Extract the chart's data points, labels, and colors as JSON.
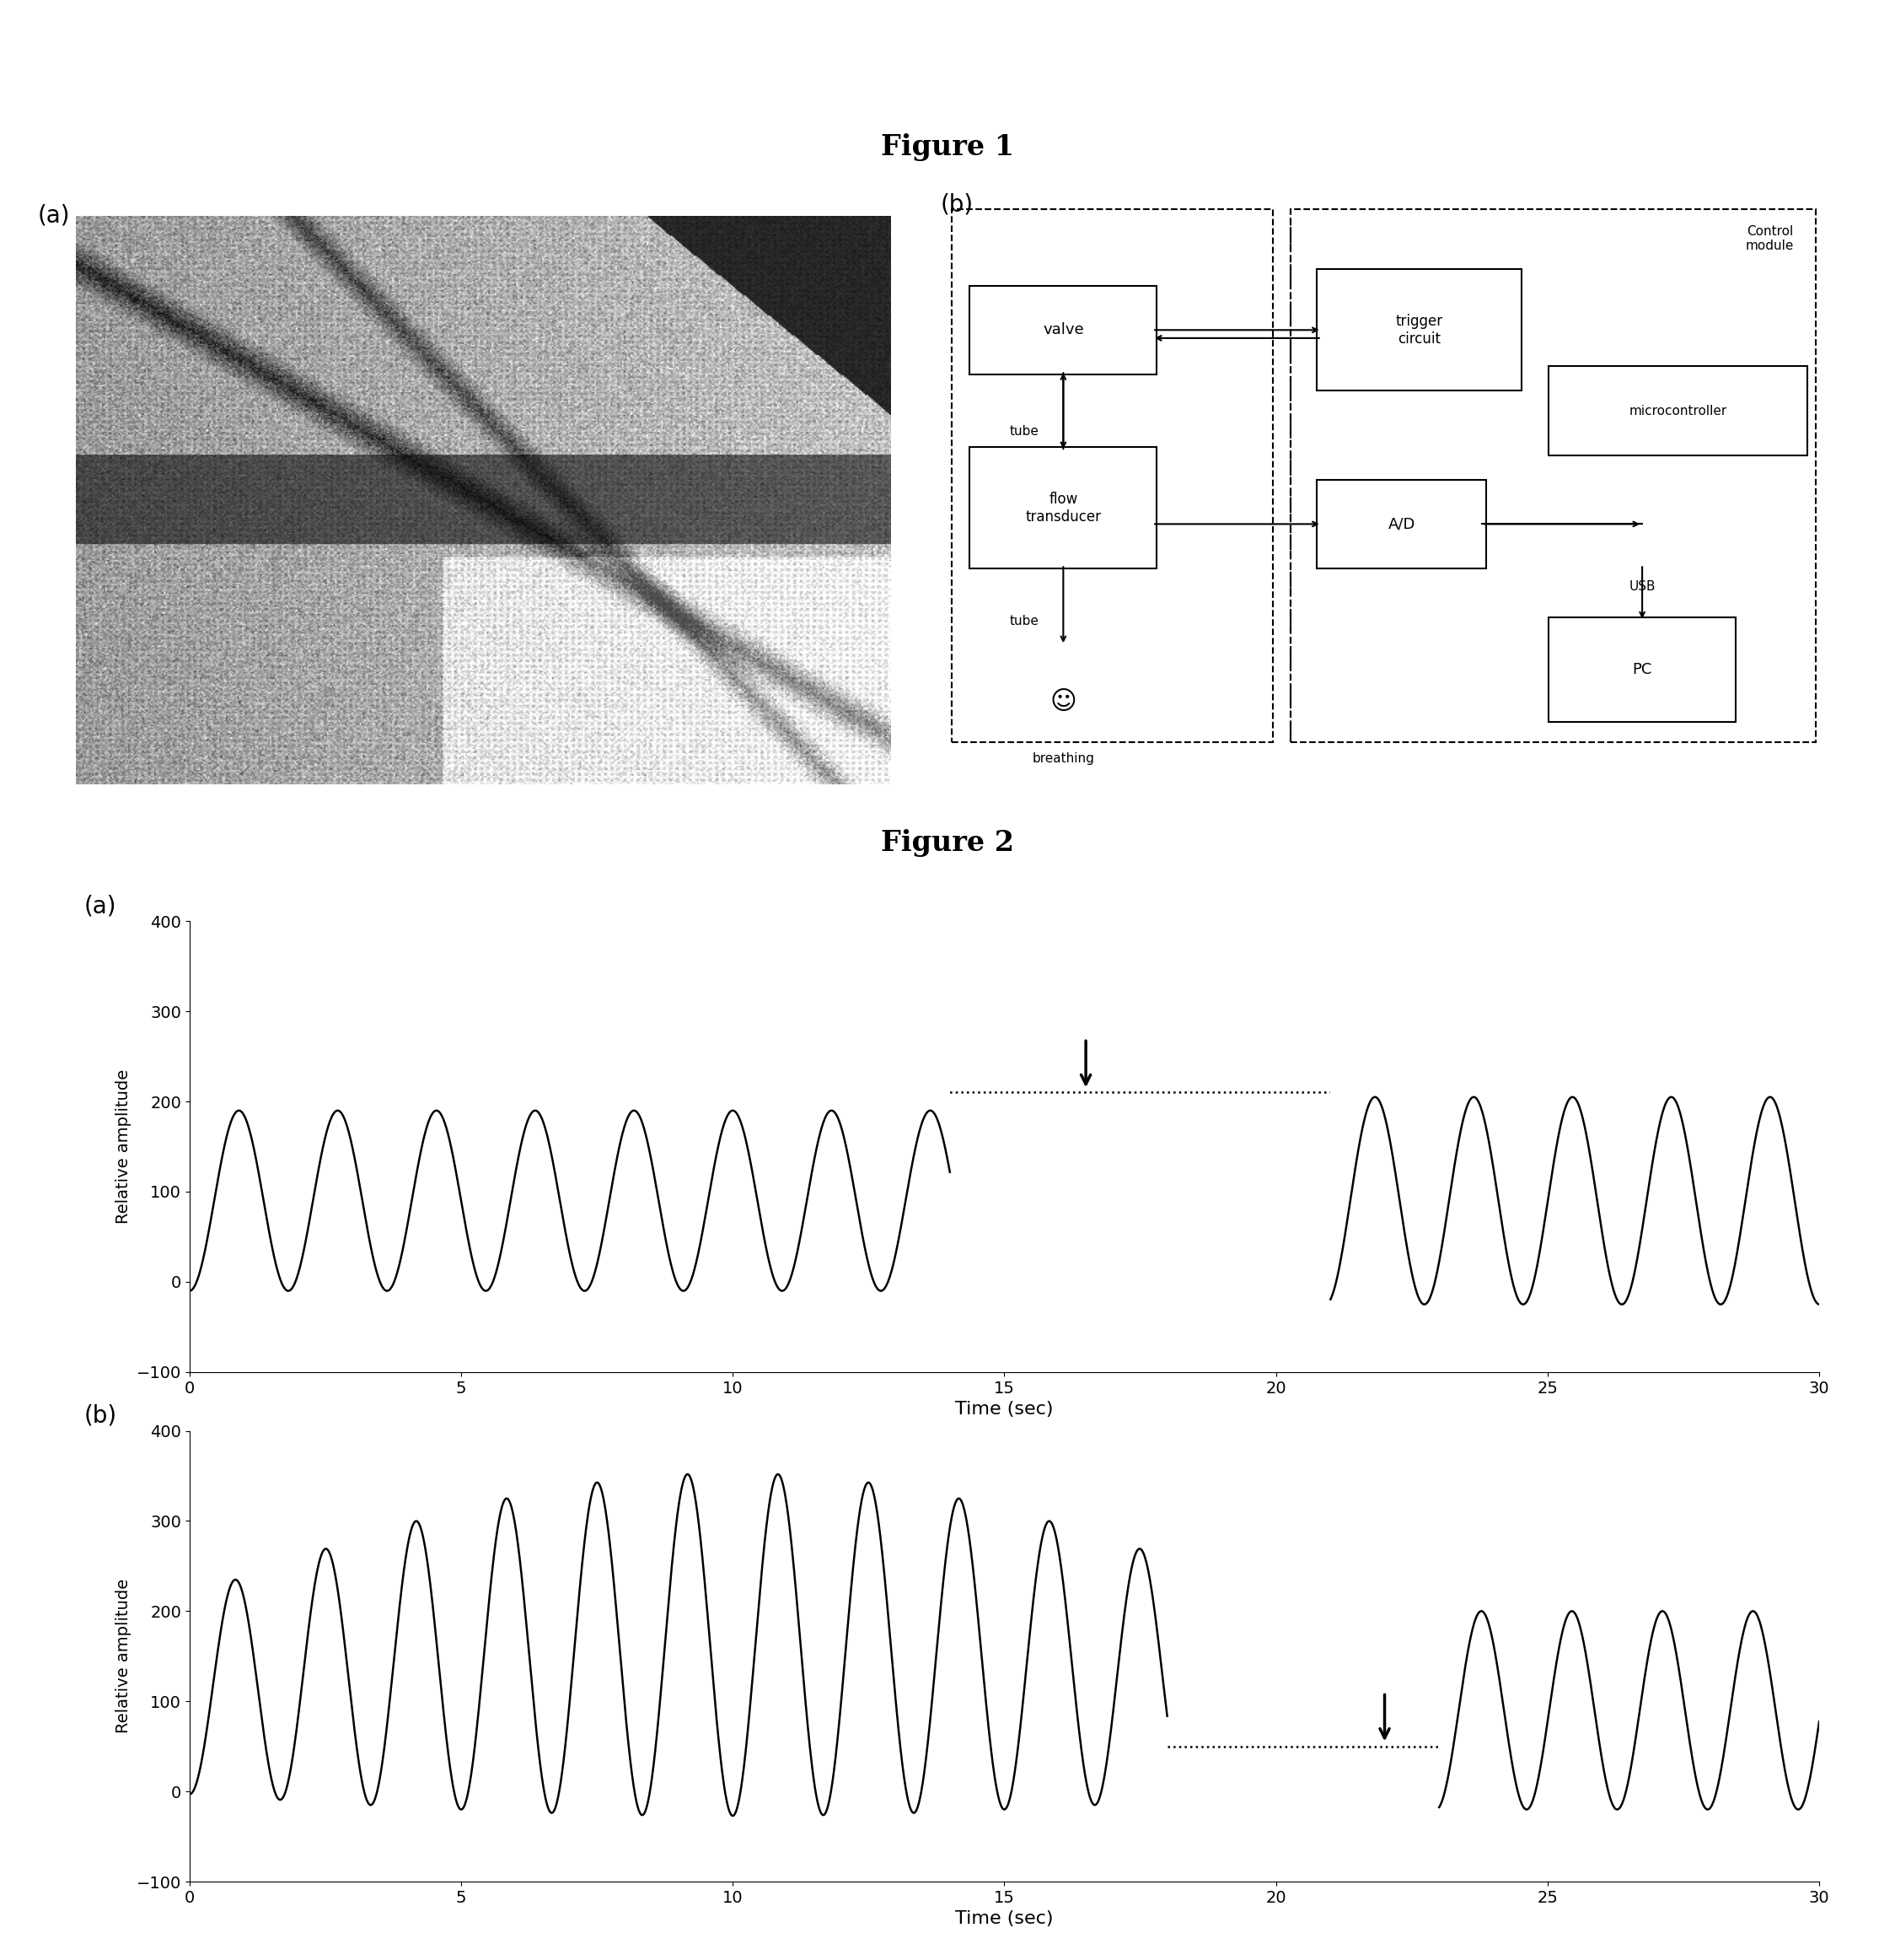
{
  "fig1_title": "Figure 1",
  "fig2_title": "Figure 2",
  "fig1a_label": "(a)",
  "fig1b_label": "(b)",
  "fig2a_label": "(a)",
  "fig2b_label": "(b)",
  "plot_xlabel": "Time (sec)",
  "plot_ylabel": "Relative amplitude",
  "plot_xlim": [
    0,
    30
  ],
  "plot_ylim": [
    -100,
    400
  ],
  "plot_yticks": [
    -100,
    0,
    100,
    200,
    300,
    400
  ],
  "plot_xticks": [
    0,
    5,
    10,
    15,
    20,
    25,
    30
  ],
  "background_color": "#ffffff",
  "line_color": "#000000",
  "control_module_label": "Control\nmodule",
  "valve_label": "valve",
  "trigger_label": "trigger\ncircuit",
  "micro_label": "microcontroller",
  "flow_label": "flow\ntransducer",
  "ad_label": "A/D",
  "tube_label1": "tube",
  "tube_label2": "tube",
  "usb_label": "USB",
  "pc_label": "PC",
  "breathing_label": "breathing"
}
